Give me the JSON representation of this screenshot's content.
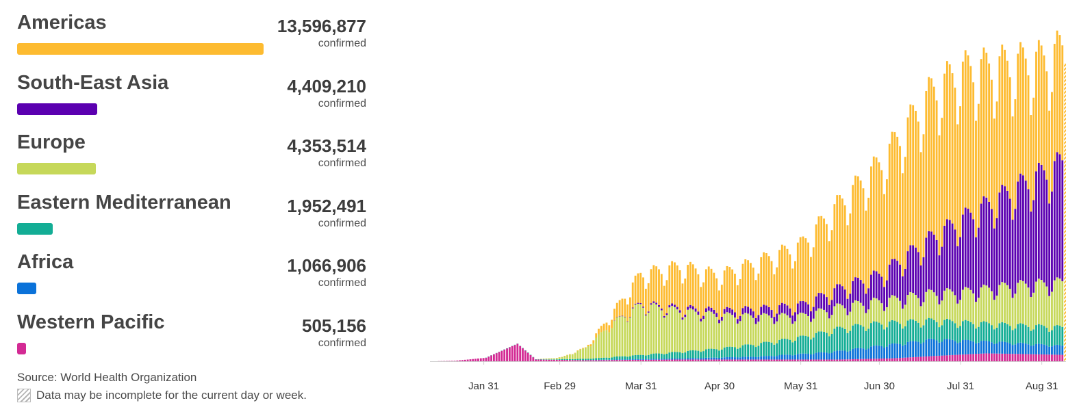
{
  "legend": {
    "items": [
      {
        "name": "Americas",
        "total": "13,596,877",
        "unit": "confirmed",
        "color": "#fdbb30",
        "fraction": 1.0
      },
      {
        "name": "South-East Asia",
        "total": "4,409,210",
        "unit": "confirmed",
        "color": "#5b00b0",
        "fraction": 0.324
      },
      {
        "name": "Europe",
        "total": "4,353,514",
        "unit": "confirmed",
        "color": "#c6d85a",
        "fraction": 0.32
      },
      {
        "name": "Eastern Mediterranean",
        "total": "1,952,491",
        "unit": "confirmed",
        "color": "#13ad95",
        "fraction": 0.144
      },
      {
        "name": "Africa",
        "total": "1,066,906",
        "unit": "confirmed",
        "color": "#0b72d9",
        "fraction": 0.078
      },
      {
        "name": "Western Pacific",
        "total": "505,156",
        "unit": "confirmed",
        "color": "#d32a94",
        "fraction": 0.037
      }
    ]
  },
  "footer": {
    "source": "Source: World Health Organization",
    "note": "Data may be incomplete for the current day or week."
  },
  "chart_data": {
    "type": "bar",
    "stacked": true,
    "x_type": "date",
    "x_range": [
      "2020-01-12",
      "2020-09-09"
    ],
    "tick_labels": [
      {
        "date": "2020-01-31",
        "label": "Jan 31"
      },
      {
        "date": "2020-02-29",
        "label": "Feb 29"
      },
      {
        "date": "2020-03-31",
        "label": "Mar 31"
      },
      {
        "date": "2020-04-30",
        "label": "Apr 30"
      },
      {
        "date": "2020-05-31",
        "label": "May 31"
      },
      {
        "date": "2020-06-30",
        "label": "Jun 30"
      },
      {
        "date": "2020-07-31",
        "label": "Jul 31"
      },
      {
        "date": "2020-08-31",
        "label": "Aug 31"
      }
    ],
    "y_range": [
      0,
      300000
    ],
    "grid": false,
    "incomplete_last_bar": true,
    "series": [
      {
        "name": "Western Pacific",
        "color": "#d32a94",
        "key_points": [
          [
            "2020-01-12",
            30
          ],
          [
            "2020-01-20",
            400
          ],
          [
            "2020-02-01",
            3000
          ],
          [
            "2020-02-13",
            15000
          ],
          [
            "2020-02-20",
            1500
          ],
          [
            "2020-03-10",
            900
          ],
          [
            "2020-04-15",
            1500
          ],
          [
            "2020-06-15",
            1500
          ],
          [
            "2020-07-05",
            2500
          ],
          [
            "2020-07-25",
            5000
          ],
          [
            "2020-08-10",
            6800
          ],
          [
            "2020-09-09",
            5500
          ]
        ]
      },
      {
        "name": "Africa",
        "color": "#0b72d9",
        "key_points": [
          [
            "2020-01-12",
            0
          ],
          [
            "2020-03-10",
            100
          ],
          [
            "2020-04-15",
            900
          ],
          [
            "2020-05-15",
            2500
          ],
          [
            "2020-06-10",
            6000
          ],
          [
            "2020-07-01",
            11000
          ],
          [
            "2020-07-20",
            14000
          ],
          [
            "2020-08-10",
            10000
          ],
          [
            "2020-09-09",
            7500
          ]
        ]
      },
      {
        "name": "Eastern Mediterranean",
        "color": "#13ad95",
        "key_points": [
          [
            "2020-01-12",
            0
          ],
          [
            "2020-02-25",
            300
          ],
          [
            "2020-03-15",
            1500
          ],
          [
            "2020-03-31",
            3500
          ],
          [
            "2020-04-30",
            7500
          ],
          [
            "2020-05-31",
            14000
          ],
          [
            "2020-06-15",
            19000
          ],
          [
            "2020-06-30",
            19000
          ],
          [
            "2020-07-20",
            16000
          ],
          [
            "2020-08-10",
            15000
          ],
          [
            "2020-09-09",
            15500
          ]
        ]
      },
      {
        "name": "Europe",
        "color": "#c6d85a",
        "key_points": [
          [
            "2020-01-12",
            0
          ],
          [
            "2020-02-20",
            50
          ],
          [
            "2020-03-01",
            1500
          ],
          [
            "2020-03-10",
            9000
          ],
          [
            "2020-03-20",
            28000
          ],
          [
            "2020-03-31",
            42000
          ],
          [
            "2020-04-10",
            37000
          ],
          [
            "2020-04-30",
            28000
          ],
          [
            "2020-05-31",
            18000
          ],
          [
            "2020-06-30",
            18500
          ],
          [
            "2020-07-31",
            25000
          ],
          [
            "2020-08-20",
            33000
          ],
          [
            "2020-09-09",
            38000
          ]
        ]
      },
      {
        "name": "South-East Asia",
        "color": "#5b00b0",
        "key_points": [
          [
            "2020-01-12",
            0
          ],
          [
            "2020-03-20",
            100
          ],
          [
            "2020-03-31",
            800
          ],
          [
            "2020-04-30",
            3500
          ],
          [
            "2020-05-31",
            9000
          ],
          [
            "2020-06-30",
            22000
          ],
          [
            "2020-07-31",
            60000
          ],
          [
            "2020-08-20",
            80000
          ],
          [
            "2020-09-08",
            100000
          ]
        ]
      },
      {
        "name": "Americas",
        "color": "#fdbb30",
        "key_points": [
          [
            "2020-01-12",
            0
          ],
          [
            "2020-02-25",
            50
          ],
          [
            "2020-03-10",
            500
          ],
          [
            "2020-03-20",
            8000
          ],
          [
            "2020-03-31",
            25000
          ],
          [
            "2020-04-15",
            35000
          ],
          [
            "2020-04-30",
            30000
          ],
          [
            "2020-05-31",
            50000
          ],
          [
            "2020-06-30",
            92000
          ],
          [
            "2020-07-20",
            122000
          ],
          [
            "2020-07-31",
            125000
          ],
          [
            "2020-08-31",
            95000
          ],
          [
            "2020-09-09",
            95000
          ]
        ]
      }
    ]
  }
}
